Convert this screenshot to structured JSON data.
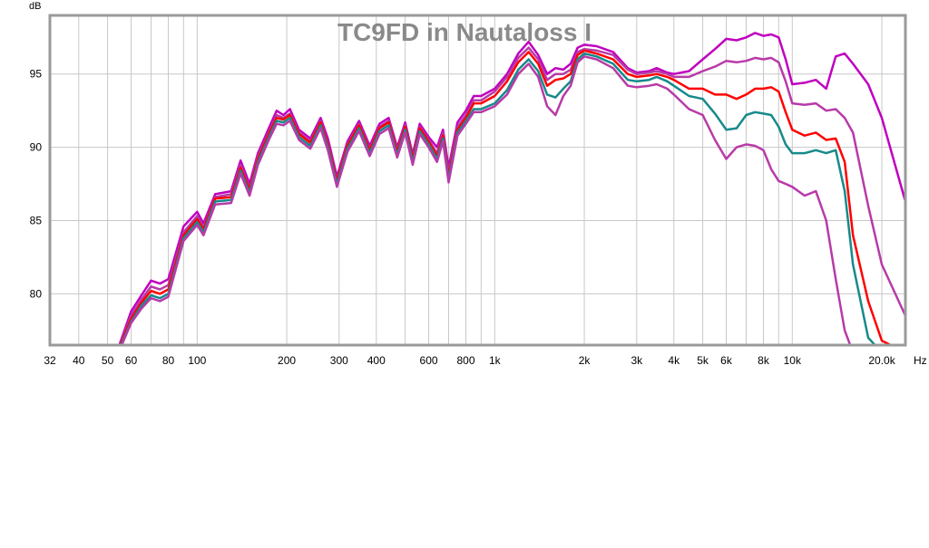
{
  "chart_data": {
    "type": "line",
    "title": "TC9FD in Nautaloss I",
    "ylabel": "dB",
    "xunit": "Hz",
    "xscale": "log",
    "xlim": [
      32,
      24000
    ],
    "ylim": [
      76.5,
      99
    ],
    "grid": true,
    "legend": "none",
    "colors": {
      "plot_border": "#9a9a9a",
      "grid": "#c8c8c8",
      "title": "#8a8a8a",
      "outer": "#c000c0",
      "mid": "#b83aa8",
      "ref": "#ff0000",
      "teal": "#178a8a"
    },
    "yticks": [
      80,
      85,
      90,
      95
    ],
    "xticks": [
      {
        "v": 32,
        "label": "32"
      },
      {
        "v": 40,
        "label": "40"
      },
      {
        "v": 50,
        "label": "50"
      },
      {
        "v": 60,
        "label": "60"
      },
      {
        "v": 80,
        "label": "80"
      },
      {
        "v": 100,
        "label": "100"
      },
      {
        "v": 200,
        "label": "200"
      },
      {
        "v": 300,
        "label": "300"
      },
      {
        "v": 400,
        "label": "400"
      },
      {
        "v": 600,
        "label": "600"
      },
      {
        "v": 800,
        "label": "800"
      },
      {
        "v": 1000,
        "label": "1k"
      },
      {
        "v": 2000,
        "label": "2k"
      },
      {
        "v": 3000,
        "label": "3k"
      },
      {
        "v": 4000,
        "label": "4k"
      },
      {
        "v": 5000,
        "label": "5k"
      },
      {
        "v": 6000,
        "label": "6k"
      },
      {
        "v": 8000,
        "label": "8k"
      },
      {
        "v": 10000,
        "label": "10k"
      },
      {
        "v": 20000,
        "label": "20.0k"
      }
    ],
    "minor_gridlines": [
      70,
      90,
      500,
      700,
      900,
      7000,
      9000
    ],
    "x": [
      55,
      60,
      65,
      70,
      75,
      80,
      90,
      100,
      105,
      115,
      130,
      140,
      150,
      160,
      175,
      185,
      195,
      205,
      220,
      240,
      260,
      275,
      295,
      320,
      350,
      380,
      410,
      440,
      470,
      500,
      530,
      560,
      600,
      640,
      670,
      700,
      750,
      800,
      850,
      900,
      1000,
      1100,
      1200,
      1300,
      1400,
      1500,
      1600,
      1700,
      1800,
      1900,
      2000,
      2200,
      2500,
      2800,
      3000,
      3300,
      3500,
      3800,
      4000,
      4500,
      5000,
      5500,
      6000,
      6500,
      7000,
      7500,
      8000,
      8500,
      9000,
      9500,
      10000,
      11000,
      12000,
      13000,
      14000,
      15000,
      16000,
      18000,
      20000,
      24000
    ],
    "series": [
      {
        "color_key": "outer",
        "values": [
          76.6,
          78.8,
          79.9,
          80.9,
          80.7,
          81.0,
          84.6,
          85.6,
          84.8,
          86.8,
          87.0,
          89.1,
          87.5,
          89.6,
          91.4,
          92.5,
          92.2,
          92.6,
          91.2,
          90.6,
          92.0,
          90.6,
          88.0,
          90.4,
          91.8,
          90.1,
          91.6,
          92.0,
          90.0,
          91.7,
          89.5,
          91.6,
          90.7,
          90.0,
          91.2,
          88.6,
          91.7,
          92.5,
          93.5,
          93.5,
          94.0,
          95.0,
          96.4,
          97.2,
          96.3,
          95.0,
          95.4,
          95.3,
          95.7,
          96.8,
          97.0,
          96.9,
          96.5,
          95.4,
          95.1,
          95.2,
          95.4,
          95.1,
          95.0,
          95.2,
          96.0,
          96.7,
          97.4,
          97.3,
          97.5,
          97.8,
          97.6,
          97.7,
          97.5,
          96.0,
          94.3,
          94.4,
          94.6,
          94.0,
          96.2,
          96.4,
          95.7,
          94.3,
          92.0,
          86.3
        ]
      },
      {
        "color_key": "mid",
        "values": [
          76.5,
          78.5,
          79.6,
          80.5,
          80.3,
          80.6,
          84.2,
          85.3,
          84.5,
          86.6,
          86.8,
          88.8,
          87.2,
          89.4,
          91.1,
          92.2,
          92.0,
          92.3,
          91.0,
          90.4,
          91.8,
          90.3,
          87.8,
          90.2,
          91.6,
          89.9,
          91.4,
          91.8,
          89.8,
          91.5,
          89.3,
          91.4,
          90.5,
          89.6,
          91.0,
          88.2,
          91.4,
          92.2,
          93.2,
          93.2,
          93.8,
          94.8,
          96.1,
          96.8,
          96.0,
          94.6,
          95.0,
          95.0,
          95.3,
          96.5,
          96.7,
          96.6,
          96.3,
          95.3,
          95.0,
          95.1,
          95.2,
          95.0,
          94.8,
          94.8,
          95.2,
          95.5,
          95.9,
          95.8,
          95.9,
          96.1,
          96.0,
          96.1,
          95.8,
          94.5,
          93.0,
          92.9,
          93.0,
          92.5,
          92.6,
          92.0,
          91.0,
          86.0,
          82.0,
          78.5
        ]
      },
      {
        "color_key": "ref",
        "values": [
          76.4,
          78.3,
          79.4,
          80.2,
          80.0,
          80.3,
          84.0,
          85.1,
          84.4,
          86.5,
          86.6,
          88.6,
          87.1,
          89.2,
          91.0,
          92.0,
          91.9,
          92.2,
          90.9,
          90.3,
          91.7,
          90.2,
          87.7,
          90.1,
          91.5,
          89.8,
          91.3,
          91.7,
          89.7,
          91.4,
          89.2,
          91.3,
          90.4,
          89.4,
          90.8,
          88.0,
          91.2,
          92.0,
          93.0,
          93.0,
          93.5,
          94.5,
          95.8,
          96.5,
          95.7,
          94.2,
          94.6,
          94.7,
          95.0,
          96.3,
          96.6,
          96.4,
          96.0,
          95.0,
          94.8,
          94.9,
          95.0,
          94.8,
          94.6,
          94.0,
          94.0,
          93.6,
          93.6,
          93.3,
          93.6,
          94.0,
          94.0,
          94.1,
          93.8,
          92.4,
          91.2,
          90.8,
          91.0,
          90.5,
          90.6,
          89.0,
          84.0,
          79.5,
          76.8,
          76.0
        ]
      },
      {
        "color_key": "teal",
        "values": [
          76.3,
          78.1,
          79.2,
          79.9,
          79.7,
          80.0,
          83.8,
          84.9,
          84.2,
          86.3,
          86.4,
          88.4,
          86.9,
          89.0,
          90.8,
          91.8,
          91.7,
          92.0,
          90.7,
          90.1,
          91.5,
          90.0,
          87.5,
          89.9,
          91.3,
          89.6,
          91.1,
          91.5,
          89.5,
          91.2,
          89.0,
          91.1,
          90.2,
          89.2,
          90.6,
          87.8,
          91.0,
          91.8,
          92.6,
          92.6,
          93.0,
          93.9,
          95.3,
          96.0,
          95.2,
          93.6,
          93.4,
          94.0,
          94.5,
          96.0,
          96.4,
          96.2,
          95.7,
          94.6,
          94.5,
          94.6,
          94.8,
          94.5,
          94.2,
          93.5,
          93.3,
          92.3,
          91.2,
          91.3,
          92.2,
          92.4,
          92.3,
          92.2,
          91.4,
          90.2,
          89.6,
          89.6,
          89.8,
          89.6,
          89.8,
          87.0,
          82.0,
          77.0,
          76.0,
          76.0
        ]
      },
      {
        "color_key": "mid",
        "values": [
          76.2,
          78.0,
          79.0,
          79.7,
          79.5,
          79.8,
          83.6,
          84.7,
          84.0,
          86.1,
          86.2,
          88.2,
          86.7,
          88.8,
          90.6,
          91.6,
          91.5,
          91.8,
          90.5,
          89.9,
          91.3,
          89.8,
          87.3,
          89.7,
          91.1,
          89.4,
          90.9,
          91.3,
          89.3,
          91.0,
          88.8,
          90.9,
          90.0,
          89.0,
          90.4,
          87.6,
          90.8,
          91.6,
          92.4,
          92.4,
          92.8,
          93.6,
          95.0,
          95.7,
          94.8,
          92.8,
          92.2,
          93.5,
          94.2,
          95.8,
          96.2,
          96.0,
          95.4,
          94.2,
          94.1,
          94.2,
          94.3,
          94.0,
          93.6,
          92.6,
          92.2,
          90.5,
          89.2,
          90.0,
          90.2,
          90.1,
          89.8,
          88.5,
          87.7,
          87.5,
          87.3,
          86.7,
          87.0,
          85.0,
          81.0,
          77.5,
          76.0,
          76.0,
          76.0,
          76.0
        ]
      }
    ]
  }
}
